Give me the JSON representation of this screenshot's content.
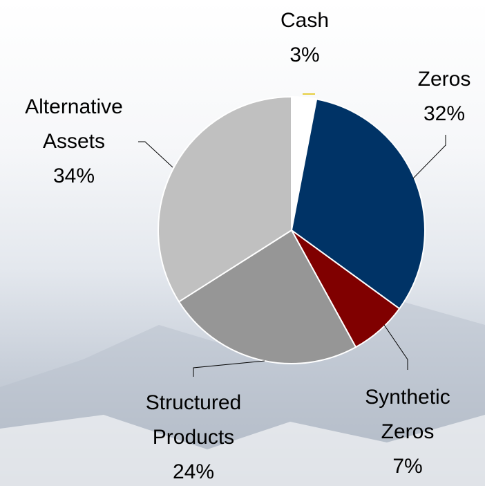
{
  "chart_data": {
    "type": "pie",
    "categories": [
      "Cash",
      "Zeros",
      "Synthetic Zeros",
      "Structured Products",
      "Alternative Assets"
    ],
    "values": [
      3,
      32,
      7,
      24,
      34
    ],
    "value_labels": [
      "3%",
      "32%",
      "7%",
      "24%",
      "34%"
    ],
    "colors": [
      "#ffffff",
      "#003366",
      "#800000",
      "#969696",
      "#c0c0c0"
    ]
  }
}
